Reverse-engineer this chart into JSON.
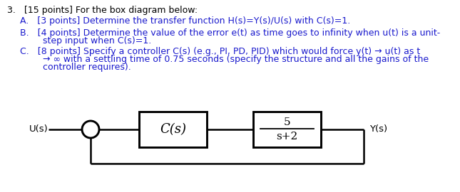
{
  "background_color": "#ffffff",
  "text_color": "#000000",
  "blue_color": "#1a1acd",
  "title_line": "3.   [15 points] For the box diagram below:",
  "item_A": "A.   [3 points] Determine the transfer function H(s)=Y(s)/U(s) with C(s)=1.",
  "item_B_line1": "B.   [4 points] Determine the value of the error e(t) as time goes to infinity when u(t) is a unit-",
  "item_B_line2": "        step input when C(s)=1.",
  "item_C_line1": "C.   [8 points] Specify a controller C(s) (e.g., PI, PD, PID) which would force y(t) → u(t) as t",
  "item_C_line2": "        → ∞ with a settling time of 0.75 seconds (specify the structure and all the gains of the",
  "item_C_line3": "        controller requires).",
  "label_Us": "U(s)",
  "label_Ys": "Y(s)",
  "box1_label": "C(s)",
  "box2_num": "5",
  "box2_den": "s+2",
  "font_size_main": 9.0,
  "font_size_diagram": 9.5,
  "lw": 1.8
}
